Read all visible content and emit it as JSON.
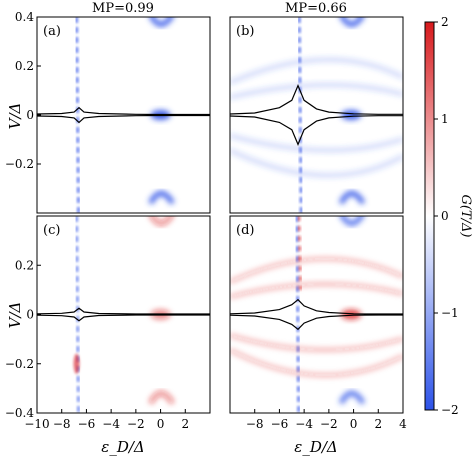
{
  "chart_data": {
    "type": "heatmap",
    "colorbar": {
      "label": "G(T/Δ)",
      "range": [
        -2,
        2
      ],
      "ticks": [
        "2",
        "1",
        "0",
        "−1",
        "−2"
      ],
      "colors": {
        "positive": "#d7191c",
        "zero": "#ffffff",
        "negative": "#2c52e8"
      }
    },
    "column_titles": [
      "MP=0.99",
      "MP=0.66"
    ],
    "y_axis": {
      "label": "V/Δ",
      "range": [
        -0.4,
        0.4
      ]
    },
    "x_axis": {
      "label": "ε_D/Δ"
    },
    "panels": [
      {
        "label": "(a)",
        "xlim": [
          -10,
          4
        ],
        "ylim": [
          -0.4,
          0.4
        ],
        "y_ticks": [
          "0.4",
          "0.2",
          "0",
          "−0.2"
        ],
        "x_ticks": [],
        "curve": {
          "xs": [
            -10,
            -8,
            -7,
            -6.6,
            -6.2,
            -5,
            -2,
            0,
            2,
            4
          ],
          "ys": [
            0.004,
            0.006,
            0.012,
            0.03,
            0.012,
            0.006,
            0.003,
            0.002,
            0.002,
            0.002
          ]
        },
        "features": [
          {
            "x": -6.8,
            "type": "vertical-line",
            "sign": "negative",
            "strength": 0.7
          },
          {
            "x": 0,
            "type": "split-lobes",
            "sign": "negative",
            "strength": 0.9
          }
        ]
      },
      {
        "label": "(b)",
        "xlim": [
          -10,
          4
        ],
        "ylim": [
          -0.4,
          0.4
        ],
        "y_ticks": [],
        "x_ticks": [],
        "curve": {
          "xs": [
            -10,
            -8,
            -6,
            -5,
            -4.5,
            -4,
            -3,
            -2,
            0,
            2,
            4
          ],
          "ys": [
            0.004,
            0.008,
            0.03,
            0.06,
            0.12,
            0.06,
            0.025,
            0.012,
            0.005,
            0.003,
            0.003
          ]
        },
        "features": [
          {
            "x": -4.4,
            "type": "vertical-line",
            "sign": "negative",
            "strength": 0.7
          },
          {
            "x": -0.2,
            "type": "split-lobes",
            "sign": "negative",
            "strength": 0.9
          },
          {
            "x": -2.0,
            "type": "faint-arcs",
            "sign": "negative",
            "strength": 0.25
          }
        ]
      },
      {
        "label": "(c)",
        "xlim": [
          -10,
          4
        ],
        "ylim": [
          -0.4,
          0.4
        ],
        "y_ticks": [
          "0.2",
          "0",
          "−0.2",
          "−0.4"
        ],
        "x_ticks": [
          "−10",
          "−8",
          "−6",
          "−4",
          "−2",
          "0",
          "2"
        ],
        "curve": {
          "xs": [
            -10,
            -8,
            -7,
            -6.6,
            -6.2,
            -5,
            -2,
            0,
            2,
            4
          ],
          "ys": [
            0.003,
            0.005,
            0.01,
            0.025,
            0.01,
            0.004,
            0.002,
            0.002,
            0.002,
            0.002
          ]
        },
        "features": [
          {
            "x": -6.8,
            "type": "vertical-line",
            "sign": "negative",
            "strength": 0.6
          },
          {
            "x": -6.8,
            "type": "negative-spot",
            "sign": "positive",
            "strength": 0.6
          },
          {
            "x": 0,
            "type": "split-lobes",
            "sign": "positive",
            "strength": 0.5
          }
        ]
      },
      {
        "label": "(d)",
        "xlim": [
          -10,
          4
        ],
        "ylim": [
          -0.4,
          0.4
        ],
        "y_ticks": [],
        "x_ticks": [
          "−8",
          "−6",
          "−4",
          "−2",
          "0",
          "2",
          "4"
        ],
        "curve": {
          "xs": [
            -10,
            -8,
            -6,
            -5,
            -4.5,
            -4,
            -3,
            -2,
            0,
            2,
            4
          ],
          "ys": [
            0.003,
            0.006,
            0.02,
            0.04,
            0.06,
            0.035,
            0.015,
            0.008,
            0.003,
            0.002,
            0.002
          ]
        },
        "features": [
          {
            "x": -4.6,
            "type": "vertical-line",
            "sign": "mixed",
            "strength": 0.7
          },
          {
            "x": -0.2,
            "type": "split-lobes",
            "sign": "mixed",
            "strength": 0.8
          },
          {
            "x": -2.5,
            "type": "faint-arcs",
            "sign": "positive",
            "strength": 0.3
          }
        ]
      }
    ]
  }
}
